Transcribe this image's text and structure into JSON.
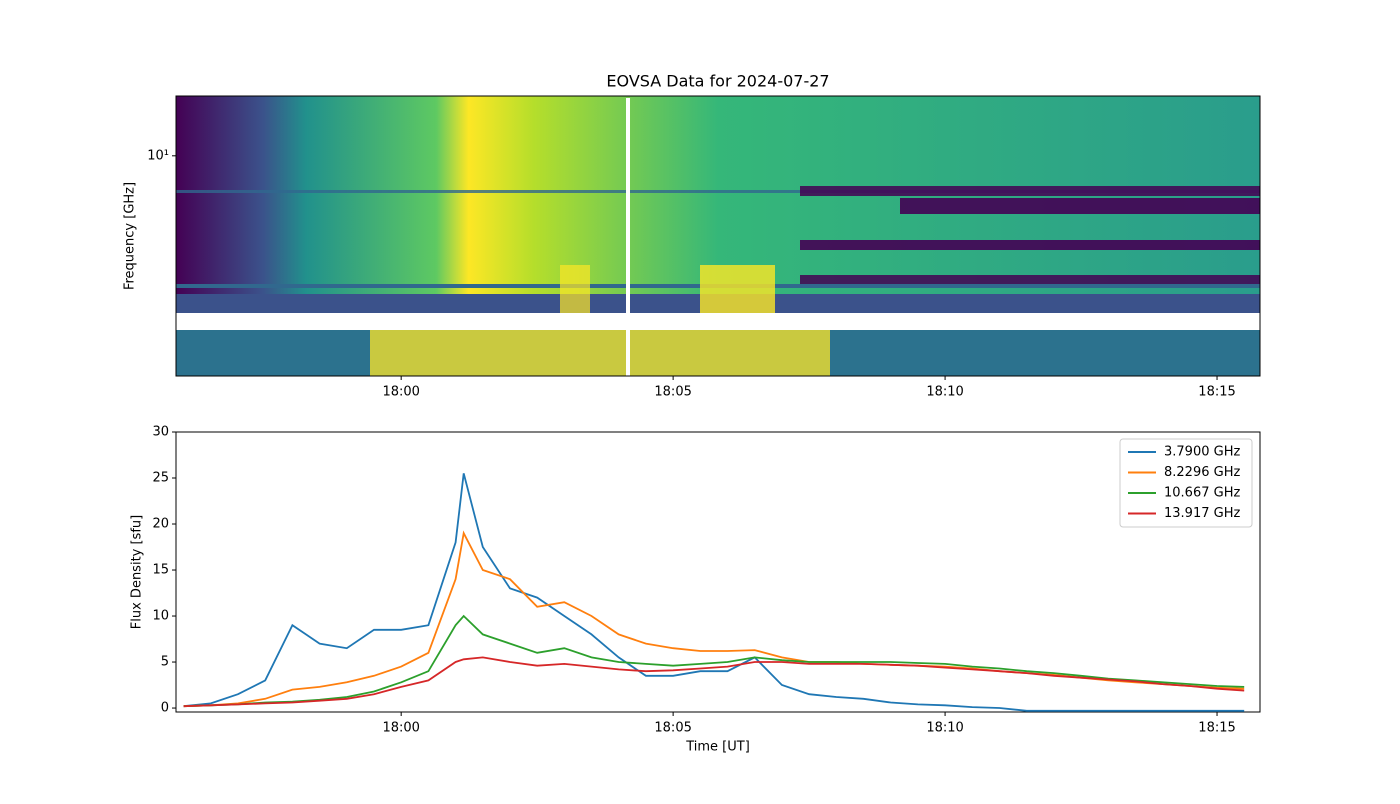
{
  "chart_data": [
    {
      "type": "spectrogram",
      "title": "EOVSA Data for 2024-07-27",
      "ylabel": "Frequency [GHz]",
      "ylog": true,
      "xlim": [
        1075.86,
        1095.79
      ],
      "xticks": [
        {
          "value": 1080,
          "label": "18:00"
        },
        {
          "value": 1085,
          "label": "18:05"
        },
        {
          "value": 1090,
          "label": "18:10"
        },
        {
          "value": 1095,
          "label": "18:15"
        }
      ],
      "ylim": [
        1.9,
        15.7
      ],
      "yticks": [
        {
          "value": 10,
          "label": "10¹"
        }
      ]
    },
    {
      "type": "line",
      "xlabel": "Time [UT]",
      "ylabel": "Flux Density [sfu]",
      "legend": "upper right",
      "xlim": [
        1075.86,
        1095.79
      ],
      "xticks": [
        {
          "value": 1080,
          "label": "18:00"
        },
        {
          "value": 1085,
          "label": "18:05"
        },
        {
          "value": 1090,
          "label": "18:10"
        },
        {
          "value": 1095,
          "label": "18:15"
        }
      ],
      "ylim": [
        -0.43,
        30
      ],
      "yticks": [
        0,
        5,
        10,
        15,
        20,
        25,
        30
      ],
      "x": [
        1076,
        1076.5,
        1077,
        1077.5,
        1078,
        1078.5,
        1079,
        1079.5,
        1080,
        1080.5,
        1081,
        1081.15,
        1081.5,
        1082,
        1082.5,
        1083,
        1083.5,
        1084,
        1084.5,
        1085,
        1085.5,
        1086,
        1086.5,
        1087,
        1087.5,
        1088,
        1088.5,
        1089,
        1089.5,
        1090,
        1090.5,
        1091,
        1091.5,
        1092,
        1092.5,
        1093,
        1093.5,
        1094,
        1094.5,
        1095,
        1095.5
      ],
      "series": [
        {
          "name": "3.7900 GHz",
          "color": "#1f77b4",
          "values": [
            0.2,
            0.5,
            1.5,
            3,
            9,
            7,
            6.5,
            8.5,
            8.5,
            9,
            18,
            25.5,
            17.5,
            13,
            12,
            10,
            8,
            5.5,
            3.5,
            3.5,
            4,
            4,
            5.5,
            2.5,
            1.5,
            1.2,
            1,
            0.6,
            0.4,
            0.3,
            0.1,
            0,
            -0.3,
            -0.3,
            -0.3,
            -0.3,
            -0.3,
            -0.3,
            -0.3,
            -0.3,
            -0.3
          ]
        },
        {
          "name": "8.2296 GHz",
          "color": "#ff7f0e",
          "values": [
            0.2,
            0.3,
            0.5,
            1,
            2,
            2.3,
            2.8,
            3.5,
            4.5,
            6,
            14,
            19,
            15,
            14,
            11,
            11.5,
            10,
            8,
            7,
            6.5,
            6.2,
            6.2,
            6.3,
            5.5,
            5,
            5,
            4.8,
            4.7,
            4.6,
            4.5,
            4.3,
            4,
            3.8,
            3.6,
            3.3,
            3,
            2.8,
            2.6,
            2.4,
            2.2,
            2.1
          ]
        },
        {
          "name": "10.667 GHz",
          "color": "#2ca02c",
          "values": [
            0.2,
            0.3,
            0.4,
            0.6,
            0.7,
            0.9,
            1.2,
            1.8,
            2.8,
            4,
            9,
            10,
            8,
            7,
            6,
            6.5,
            5.5,
            5,
            4.8,
            4.6,
            4.8,
            5,
            5.5,
            5.2,
            5,
            5,
            5,
            5,
            4.9,
            4.8,
            4.5,
            4.3,
            4,
            3.8,
            3.5,
            3.2,
            3,
            2.8,
            2.6,
            2.4,
            2.3
          ]
        },
        {
          "name": "13.917 GHz",
          "color": "#d62728",
          "values": [
            0.2,
            0.3,
            0.4,
            0.5,
            0.6,
            0.8,
            1,
            1.5,
            2.3,
            3,
            5,
            5.3,
            5.5,
            5,
            4.6,
            4.8,
            4.5,
            4.2,
            4,
            4.1,
            4.3,
            4.5,
            5,
            5,
            4.8,
            4.8,
            4.8,
            4.7,
            4.6,
            4.4,
            4.2,
            4,
            3.8,
            3.5,
            3.3,
            3.1,
            2.9,
            2.6,
            2.4,
            2.1,
            1.9
          ]
        }
      ]
    }
  ]
}
